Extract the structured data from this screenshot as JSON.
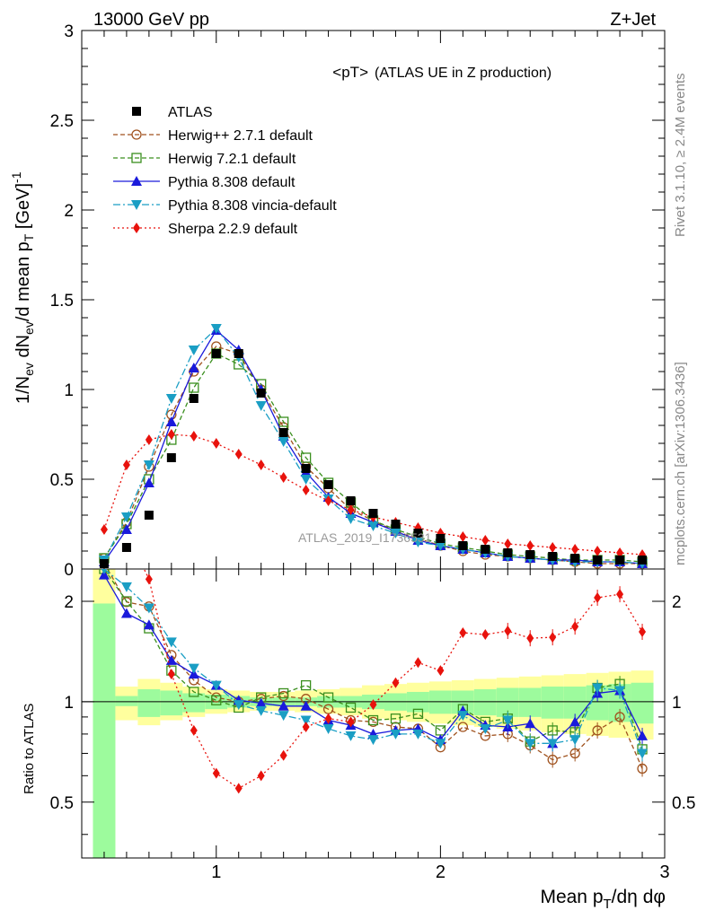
{
  "header": {
    "energy": "13000 GeV pp",
    "process": "Z+Jet"
  },
  "side_labels": {
    "rivet": "Rivet 3.1.10, ≥ 2.4M events",
    "mcplots": "mcplots.cern.ch [arXiv:1306.3436]"
  },
  "watermark": "ATLAS_2019_I1736531",
  "chart_data": {
    "type": "line",
    "title_main": "<pT>",
    "title_sub": "(ATLAS UE in Z production)",
    "xlabel": "Mean p_T/dη dφ",
    "ylabel": "1/N_ev dN_ev/d mean p_T [GeV]^-1",
    "ratio_ylabel": "Ratio to ATLAS",
    "xlim": [
      0.4,
      3.0
    ],
    "ylim": [
      0,
      3
    ],
    "ratio_ylim": [
      0.34,
      2.5
    ],
    "ratio_log": true,
    "x_ticks": [
      1,
      2,
      3
    ],
    "x_tick_labels": [
      "1",
      "2",
      "3"
    ],
    "y_ticks": [
      0,
      0.5,
      1,
      1.5,
      2,
      2.5,
      3
    ],
    "y_tick_labels": [
      "0",
      "0.5",
      "1",
      "1.5",
      "2",
      "2.5",
      "3"
    ],
    "ratio_ticks": [
      0.5,
      1,
      2
    ],
    "ratio_tick_labels": [
      "0.5",
      "1",
      "2"
    ],
    "legend_position": "top-left",
    "x": [
      0.5,
      0.6,
      0.7,
      0.8,
      0.9,
      1.0,
      1.1,
      1.2,
      1.3,
      1.4,
      1.5,
      1.6,
      1.7,
      1.8,
      1.9,
      2.0,
      2.1,
      2.2,
      2.3,
      2.4,
      2.5,
      2.6,
      2.7,
      2.8,
      2.9
    ],
    "band_edges": [
      0.45,
      0.55,
      0.65,
      0.75,
      0.85,
      0.95,
      1.05,
      1.15,
      1.25,
      1.35,
      1.45,
      1.55,
      1.65,
      1.75,
      1.85,
      1.95,
      2.05,
      2.15,
      2.25,
      2.35,
      2.45,
      2.55,
      2.65,
      2.75,
      2.85,
      2.95
    ],
    "band_stat_lo": [
      0.1,
      0.97,
      0.9,
      0.91,
      0.93,
      0.95,
      0.96,
      0.97,
      0.97,
      0.97,
      0.96,
      0.96,
      0.95,
      0.94,
      0.93,
      0.92,
      0.92,
      0.91,
      0.9,
      0.9,
      0.89,
      0.89,
      0.88,
      0.87,
      0.86
    ],
    "band_stat_hi": [
      1.97,
      1.04,
      1.09,
      1.08,
      1.06,
      1.05,
      1.04,
      1.03,
      1.03,
      1.03,
      1.04,
      1.04,
      1.05,
      1.06,
      1.07,
      1.08,
      1.08,
      1.09,
      1.1,
      1.1,
      1.11,
      1.11,
      1.12,
      1.13,
      1.14
    ],
    "band_tot_lo": [
      0.1,
      0.88,
      0.85,
      0.88,
      0.9,
      0.92,
      0.93,
      0.94,
      0.94,
      0.93,
      0.92,
      0.91,
      0.89,
      0.88,
      0.87,
      0.86,
      0.85,
      0.84,
      0.83,
      0.82,
      0.81,
      0.8,
      0.79,
      0.78,
      0.77
    ],
    "band_tot_hi": [
      3.0,
      1.11,
      1.17,
      1.14,
      1.11,
      1.09,
      1.08,
      1.07,
      1.07,
      1.08,
      1.09,
      1.1,
      1.12,
      1.13,
      1.14,
      1.15,
      1.16,
      1.17,
      1.18,
      1.19,
      1.2,
      1.21,
      1.22,
      1.23,
      1.24
    ],
    "series": [
      {
        "name": "ATLAS",
        "color": "#000000",
        "marker": "square-filled",
        "dash": "none",
        "values": [
          0.03,
          0.12,
          0.3,
          0.62,
          0.95,
          1.2,
          1.2,
          0.98,
          0.76,
          0.56,
          0.47,
          0.38,
          0.31,
          0.25,
          0.2,
          0.17,
          0.13,
          0.11,
          0.09,
          0.08,
          0.07,
          0.06,
          0.05,
          0.05,
          0.05
        ],
        "ratio": null
      },
      {
        "name": "Herwig++ 2.7.1 default",
        "color": "#a0521e",
        "marker": "circle-open",
        "dash": "5,3",
        "values": [
          0.06,
          0.26,
          0.57,
          0.86,
          1.1,
          1.24,
          1.2,
          1.0,
          0.79,
          0.57,
          0.45,
          0.33,
          0.27,
          0.21,
          0.17,
          0.13,
          0.1,
          0.08,
          0.07,
          0.06,
          0.05,
          0.04,
          0.03,
          0.03,
          0.03
        ],
        "ratio": [
          2.6,
          1.99,
          1.93,
          1.38,
          1.16,
          1.03,
          1.0,
          1.02,
          1.04,
          1.02,
          0.95,
          0.88,
          0.87,
          0.84,
          0.83,
          0.73,
          0.84,
          0.79,
          0.8,
          0.74,
          0.67,
          0.7,
          0.82,
          0.9,
          0.63
        ]
      },
      {
        "name": "Herwig 7.2.1 default",
        "color": "#3a8f1e",
        "marker": "square-open",
        "dash": "5,3",
        "values": [
          0.06,
          0.25,
          0.5,
          0.72,
          1.01,
          1.2,
          1.14,
          1.03,
          0.82,
          0.62,
          0.48,
          0.37,
          0.27,
          0.22,
          0.18,
          0.14,
          0.12,
          0.1,
          0.08,
          0.07,
          0.06,
          0.05,
          0.05,
          0.05,
          0.04
        ],
        "ratio": [
          2.5,
          2.0,
          1.66,
          1.24,
          1.07,
          1.01,
          0.96,
          1.03,
          1.06,
          1.12,
          1.03,
          0.96,
          0.88,
          0.89,
          0.92,
          0.82,
          0.95,
          0.87,
          0.89,
          0.76,
          0.82,
          0.81,
          1.1,
          1.13,
          0.72
        ]
      },
      {
        "name": "Pythia 8.308 default",
        "color": "#1a1adb",
        "marker": "triangle-up",
        "dash": "none",
        "values": [
          0.04,
          0.22,
          0.48,
          0.82,
          1.12,
          1.33,
          1.22,
          1.0,
          0.74,
          0.54,
          0.4,
          0.31,
          0.26,
          0.21,
          0.16,
          0.13,
          0.11,
          0.09,
          0.07,
          0.06,
          0.05,
          0.05,
          0.04,
          0.04,
          0.03
        ],
        "ratio": [
          2.4,
          1.84,
          1.7,
          1.33,
          1.21,
          1.12,
          1.01,
          0.99,
          0.97,
          0.97,
          0.88,
          0.85,
          0.8,
          0.82,
          0.83,
          0.77,
          0.94,
          0.85,
          0.84,
          0.86,
          0.75,
          0.87,
          1.06,
          1.08,
          0.79
        ]
      },
      {
        "name": "Pythia 8.308 vincia-default",
        "color": "#1a9ec4",
        "marker": "triangle-down",
        "dash": "8,3,2,3",
        "values": [
          0.05,
          0.29,
          0.58,
          0.95,
          1.22,
          1.34,
          1.18,
          0.91,
          0.71,
          0.5,
          0.39,
          0.28,
          0.24,
          0.2,
          0.15,
          0.13,
          0.11,
          0.09,
          0.07,
          0.06,
          0.05,
          0.04,
          0.04,
          0.04,
          0.03
        ],
        "ratio": [
          2.5,
          2.21,
          1.91,
          1.51,
          1.26,
          1.12,
          0.98,
          0.94,
          0.91,
          0.88,
          0.83,
          0.79,
          0.77,
          0.8,
          0.8,
          0.75,
          0.91,
          0.83,
          0.88,
          0.75,
          0.75,
          0.77,
          1.1,
          1.08,
          0.7
        ]
      },
      {
        "name": "Sherpa 2.2.9 default",
        "color": "#e8120c",
        "marker": "diamond",
        "dash": "2,3",
        "values": [
          0.22,
          0.58,
          0.72,
          0.75,
          0.74,
          0.7,
          0.64,
          0.58,
          0.51,
          0.44,
          0.38,
          0.33,
          0.29,
          0.26,
          0.23,
          0.2,
          0.18,
          0.16,
          0.14,
          0.13,
          0.12,
          0.11,
          0.1,
          0.09,
          0.08
        ],
        "ratio": [
          6.0,
          3.2,
          2.33,
          1.21,
          0.82,
          0.61,
          0.55,
          0.6,
          0.69,
          0.84,
          0.89,
          0.87,
          0.98,
          1.14,
          1.31,
          1.24,
          1.61,
          1.59,
          1.63,
          1.55,
          1.56,
          1.68,
          2.05,
          2.1,
          1.62
        ]
      }
    ]
  }
}
